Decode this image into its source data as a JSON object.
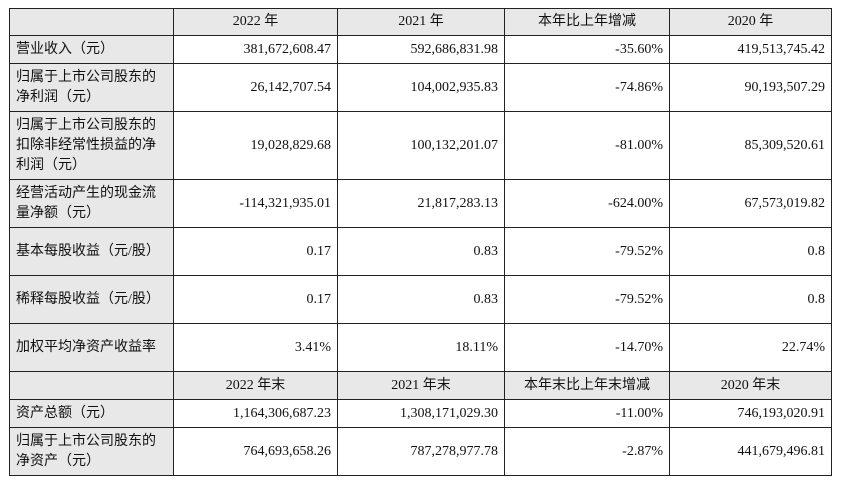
{
  "header1": [
    "2022 年",
    "2021 年",
    "本年比上年增减",
    "2020 年"
  ],
  "rows1": [
    {
      "label": "营业收入（元）",
      "values": [
        "381,672,608.47",
        "592,686,831.98",
        "-35.60%",
        "419,513,745.42"
      ]
    },
    {
      "label": "归属于上市公司股东的净利润（元）",
      "values": [
        "26,142,707.54",
        "104,002,935.83",
        "-74.86%",
        "90,193,507.29"
      ]
    },
    {
      "label": "归属于上市公司股东的扣除非经常性损益的净利润（元）",
      "values": [
        "19,028,829.68",
        "100,132,201.07",
        "-81.00%",
        "85,309,520.61"
      ]
    },
    {
      "label": "经营活动产生的现金流量净额（元）",
      "values": [
        "-114,321,935.01",
        "21,817,283.13",
        "-624.00%",
        "67,573,019.82"
      ]
    },
    {
      "label": "基本每股收益（元/股）",
      "values": [
        "0.17",
        "0.83",
        "-79.52%",
        "0.8"
      ]
    },
    {
      "label": "稀释每股收益（元/股）",
      "values": [
        "0.17",
        "0.83",
        "-79.52%",
        "0.8"
      ]
    },
    {
      "label": "加权平均净资产收益率",
      "values": [
        "3.41%",
        "18.11%",
        "-14.70%",
        "22.74%"
      ]
    }
  ],
  "header2": [
    "2022 年末",
    "2021 年末",
    "本年末比上年末增减",
    "2020 年末"
  ],
  "rows2": [
    {
      "label": "资产总额（元）",
      "values": [
        "1,164,306,687.23",
        "1,308,171,029.30",
        "-11.00%",
        "746,193,020.91"
      ]
    },
    {
      "label": "归属于上市公司股东的净资产（元）",
      "values": [
        "764,693,658.26",
        "787,278,977.78",
        "-2.87%",
        "441,679,496.81"
      ]
    }
  ]
}
